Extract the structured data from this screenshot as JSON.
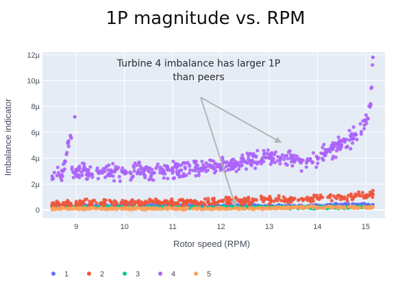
{
  "title": "1P magnitude vs. RPM",
  "chart_data": {
    "type": "scatter",
    "xlabel": "Rotor speed (RPM)",
    "ylabel": "Imbalance indicator",
    "xlim": [
      8.3,
      15.4
    ],
    "ylim": [
      -6.33e-07,
      1.22e-05
    ],
    "x_ticks": [
      9,
      10,
      11,
      12,
      13,
      14,
      15
    ],
    "x_tick_labels": [
      "9",
      "10",
      "11",
      "12",
      "13",
      "14",
      "15"
    ],
    "y_ticks": [
      0,
      2e-06,
      4e-06,
      6e-06,
      8e-06,
      1e-05,
      1.2e-05
    ],
    "y_tick_labels": [
      "0",
      "2µ",
      "4µ",
      "6µ",
      "8µ",
      "10µ",
      "12µ"
    ],
    "grid": true,
    "legend_placement": "bottom",
    "series": [
      {
        "name": "1",
        "color": "#636efa",
        "x": [
          8.5,
          9.0,
          9.5,
          10.0,
          10.5,
          11.0,
          11.5,
          12.0,
          12.5,
          13.0,
          13.5,
          14.0,
          14.5,
          15.0,
          15.15
        ],
        "y": [
          3e-07,
          3e-07,
          3e-07,
          3e-07,
          3e-07,
          3e-07,
          3e-07,
          3e-07,
          3e-07,
          3e-07,
          3e-07,
          3e-07,
          4e-07,
          4e-07,
          4e-07
        ]
      },
      {
        "name": "2",
        "color": "#ef553b",
        "x": [
          8.5,
          9.0,
          9.5,
          10.0,
          10.5,
          11.0,
          11.5,
          12.0,
          12.5,
          13.0,
          13.5,
          14.0,
          14.5,
          15.0,
          15.15
        ],
        "y": [
          4e-07,
          5e-07,
          5e-07,
          5e-07,
          6e-07,
          6e-07,
          6e-07,
          7e-07,
          7e-07,
          8e-07,
          8e-07,
          9e-07,
          1e-06,
          1.1e-06,
          1.2e-06
        ]
      },
      {
        "name": "3",
        "color": "#00cc96",
        "x": [
          8.5,
          9.0,
          9.5,
          10.0,
          10.5,
          11.0,
          11.5,
          12.0,
          12.5,
          13.0,
          13.5,
          14.0,
          14.5,
          15.0,
          15.15
        ],
        "y": [
          2e-07,
          2e-07,
          2e-07,
          2e-07,
          2e-07,
          2e-07,
          2e-07,
          2e-07,
          2e-07,
          2e-07,
          2e-07,
          2e-07,
          2e-07,
          2e-07,
          2e-07
        ]
      },
      {
        "name": "4",
        "color": "#ab63fa",
        "x": [
          8.5,
          8.7,
          8.97,
          9.0,
          9.5,
          10.0,
          10.5,
          11.0,
          11.5,
          12.0,
          12.5,
          13.0,
          13.5,
          13.9,
          14.2,
          14.5,
          14.8,
          15.0,
          15.1,
          15.15
        ],
        "y": [
          2.6e-06,
          2.7e-06,
          7.2e-06,
          3e-06,
          3e-06,
          2.9e-06,
          3e-06,
          3.1e-06,
          3.2e-06,
          3.5e-06,
          3.7e-06,
          4e-06,
          3.8e-06,
          3.7e-06,
          4.5e-06,
          5e-06,
          5.8e-06,
          6.9e-06,
          8.2e-06,
          1.18e-05
        ]
      },
      {
        "name": "5",
        "color": "#ffa15a",
        "x": [
          8.5,
          9.0,
          9.5,
          10.0,
          10.5,
          11.0,
          11.5,
          12.0,
          12.5,
          13.0,
          13.5,
          14.0,
          14.5,
          15.0,
          15.15
        ],
        "y": [
          1e-07,
          1e-07,
          1e-07,
          1e-07,
          1e-07,
          1e-07,
          1e-07,
          1e-07,
          1e-07,
          1e-07,
          2e-07,
          2e-07,
          2e-07,
          2e-07,
          2e-07
        ]
      }
    ],
    "annotation": {
      "lines": [
        "Turbine 4 imbalance has larger 1P",
        "than peers"
      ],
      "arrow_targets": [
        {
          "x": 12.3,
          "y": 3e-07
        },
        {
          "x": 13.25,
          "y": 5.2e-06
        }
      ]
    }
  }
}
